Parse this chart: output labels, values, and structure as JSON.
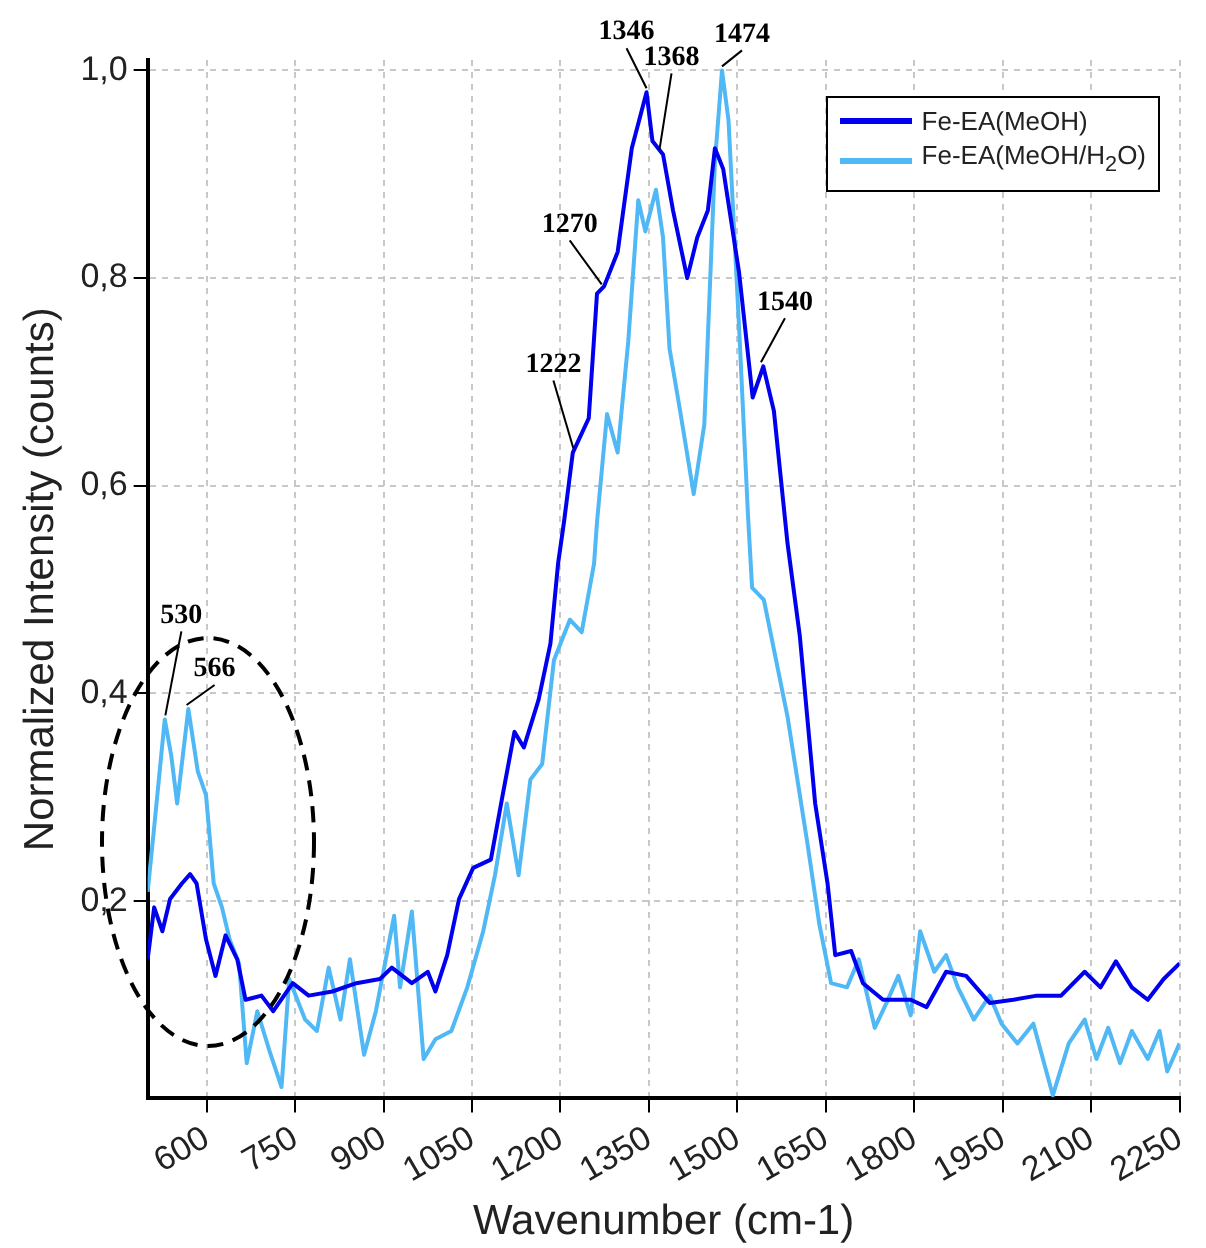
{
  "chart_data": {
    "type": "line",
    "xlabel": "Wavenumber (cm-1)",
    "ylabel": "Normalized Intensity (counts)",
    "xlim": [
      500,
      2250
    ],
    "xticks": [
      600,
      750,
      900,
      1050,
      1200,
      1350,
      1500,
      1650,
      1800,
      1950,
      2100,
      2250
    ],
    "ylim": [
      0.01,
      1.01
    ],
    "yticks": [
      {
        "value": 0.2,
        "label": "0,2"
      },
      {
        "value": 0.4,
        "label": "0,4"
      },
      {
        "value": 0.6,
        "label": "0,6"
      },
      {
        "value": 0.8,
        "label": "0,8"
      },
      {
        "value": 1.0,
        "label": "1,0"
      }
    ],
    "grid": true,
    "legend": "top right",
    "marker": "none",
    "line_style": "solid",
    "series": [
      {
        "name": "Fe-EA(MeOH)",
        "color": "#0000ee",
        "x": [
          500,
          511,
          525,
          538,
          558,
          572,
          583,
          599,
          615,
          632,
          652,
          666,
          693,
          713,
          746,
          773,
          813,
          854,
          894,
          914,
          948,
          975,
          988,
          1008,
          1028,
          1052,
          1082,
          1102,
          1122,
          1138,
          1163,
          1183,
          1196,
          1206,
          1221,
          1248,
          1262,
          1274,
          1297,
          1321,
          1346,
          1356,
          1374,
          1391,
          1415,
          1432,
          1450,
          1462,
          1476,
          1503,
          1526,
          1544,
          1562,
          1585,
          1606,
          1632,
          1653,
          1666,
          1693,
          1713,
          1747,
          1794,
          1821,
          1854,
          1888,
          1928,
          1968,
          2008,
          2049,
          2089,
          2116,
          2142,
          2169,
          2196,
          2223,
          2250
        ],
        "values": [
          0.144,
          0.194,
          0.171,
          0.202,
          0.217,
          0.226,
          0.217,
          0.163,
          0.128,
          0.167,
          0.144,
          0.105,
          0.109,
          0.094,
          0.121,
          0.109,
          0.113,
          0.121,
          0.125,
          0.136,
          0.121,
          0.132,
          0.113,
          0.148,
          0.202,
          0.232,
          0.24,
          0.302,
          0.363,
          0.348,
          0.394,
          0.448,
          0.525,
          0.565,
          0.632,
          0.665,
          0.785,
          0.792,
          0.825,
          0.925,
          0.979,
          0.932,
          0.919,
          0.865,
          0.8,
          0.839,
          0.865,
          0.925,
          0.905,
          0.805,
          0.685,
          0.715,
          0.672,
          0.545,
          0.455,
          0.294,
          0.217,
          0.148,
          0.152,
          0.121,
          0.105,
          0.105,
          0.098,
          0.132,
          0.128,
          0.102,
          0.105,
          0.109,
          0.109,
          0.132,
          0.117,
          0.142,
          0.117,
          0.105,
          0.125,
          0.14
        ]
      },
      {
        "name": "Fe-EA(MeOH/H$_{2}$O)",
        "color": "#4fb8f5",
        "x": [
          500,
          511,
          529,
          540,
          550,
          569,
          585,
          599,
          612,
          626,
          639,
          655,
          668,
          686,
          707,
          727,
          740,
          767,
          787,
          807,
          827,
          843,
          867,
          887,
          918,
          928,
          948,
          968,
          988,
          1015,
          1042,
          1069,
          1089,
          1109,
          1129,
          1149,
          1169,
          1189,
          1216,
          1236,
          1257,
          1262,
          1279,
          1297,
          1315,
          1332,
          1344,
          1362,
          1374,
          1385,
          1403,
          1426,
          1444,
          1462,
          1474,
          1485,
          1503,
          1518,
          1525,
          1545,
          1585,
          1619,
          1639,
          1659,
          1686,
          1706,
          1733,
          1753,
          1773,
          1794,
          1810,
          1834,
          1854,
          1874,
          1901,
          1928,
          1948,
          1975,
          2002,
          2035,
          2062,
          2089,
          2109,
          2129,
          2149,
          2169,
          2196,
          2216,
          2229,
          2250
        ],
        "values": [
          0.209,
          0.271,
          0.375,
          0.34,
          0.294,
          0.385,
          0.325,
          0.302,
          0.217,
          0.194,
          0.163,
          0.14,
          0.044,
          0.094,
          0.055,
          0.021,
          0.125,
          0.086,
          0.075,
          0.136,
          0.086,
          0.144,
          0.052,
          0.094,
          0.186,
          0.117,
          0.19,
          0.048,
          0.067,
          0.075,
          0.117,
          0.171,
          0.225,
          0.294,
          0.225,
          0.317,
          0.332,
          0.432,
          0.471,
          0.459,
          0.525,
          0.565,
          0.669,
          0.632,
          0.739,
          0.875,
          0.845,
          0.885,
          0.839,
          0.732,
          0.672,
          0.592,
          0.659,
          0.912,
          1.0,
          0.952,
          0.752,
          0.572,
          0.502,
          0.49,
          0.378,
          0.255,
          0.178,
          0.121,
          0.117,
          0.144,
          0.078,
          0.102,
          0.128,
          0.09,
          0.171,
          0.132,
          0.148,
          0.117,
          0.086,
          0.109,
          0.082,
          0.063,
          0.082,
          0.013,
          0.063,
          0.086,
          0.048,
          0.078,
          0.044,
          0.075,
          0.048,
          0.075,
          0.036,
          0.063
        ]
      }
    ],
    "annotations": [
      {
        "text": "530",
        "x": 530,
        "y": 0.375
      },
      {
        "text": "566",
        "x": 566,
        "y": 0.385
      },
      {
        "text": "1222",
        "x": 1222,
        "y": 0.632
      },
      {
        "text": "1270",
        "x": 1270,
        "y": 0.79
      },
      {
        "text": "1346",
        "x": 1346,
        "y": 0.979
      },
      {
        "text": "1368",
        "x": 1368,
        "y": 0.92
      },
      {
        "text": "1474",
        "x": 1474,
        "y": 1.0
      },
      {
        "text": "1540",
        "x": 1540,
        "y": 0.715
      }
    ]
  }
}
